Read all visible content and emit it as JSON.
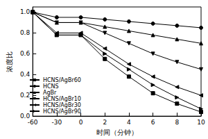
{
  "chart_data": {
    "type": "line",
    "x_label": "时间（分钟）",
    "y_label": "浓度比",
    "categories": [
      "-60",
      "-30",
      "0",
      "2",
      "4",
      "6",
      "8",
      "10"
    ],
    "ylim": [
      0,
      1.05
    ],
    "yticks": [
      {
        "value": 0,
        "label": "0.0"
      },
      {
        "value": 0.2,
        "label": "0.2"
      },
      {
        "value": 0.4,
        "label": "0.4"
      },
      {
        "value": 0.6,
        "label": "0.6"
      },
      {
        "value": 0.8,
        "label": "0.8"
      },
      {
        "value": 1,
        "label": "1.0"
      }
    ],
    "legend": "lower left",
    "grid": false,
    "series": [
      {
        "name": "HCNS/AgBr60",
        "color": "#000000",
        "marker": "square",
        "values": [
          1,
          0.78,
          0.78,
          0.55,
          0.38,
          0.22,
          0.12,
          0.04
        ]
      },
      {
        "name": "HCNS",
        "color": "#000000",
        "marker": "circle",
        "values": [
          1,
          0.95,
          0.95,
          0.93,
          0.91,
          0.89,
          0.87,
          0.85
        ]
      },
      {
        "name": "AgBr",
        "color": "#000000",
        "marker": "triangle",
        "values": [
          1,
          0.9,
          0.9,
          0.86,
          0.82,
          0.78,
          0.74,
          0.7
        ]
      },
      {
        "name": "HCNS/AgBr10",
        "color": "#000000",
        "marker": "triangle-down",
        "values": [
          1,
          0.9,
          0.9,
          0.8,
          0.7,
          0.6,
          0.52,
          0.45
        ]
      },
      {
        "name": "HCNS/AgBr30",
        "color": "#000000",
        "marker": "triangle-left",
        "values": [
          1,
          0.8,
          0.8,
          0.65,
          0.5,
          0.38,
          0.28,
          0.2
        ]
      },
      {
        "name": "HCNS/AgBr90",
        "color": "#000000",
        "marker": "triangle-right",
        "values": [
          1,
          0.78,
          0.78,
          0.6,
          0.45,
          0.3,
          0.18,
          0.07
        ]
      }
    ]
  }
}
